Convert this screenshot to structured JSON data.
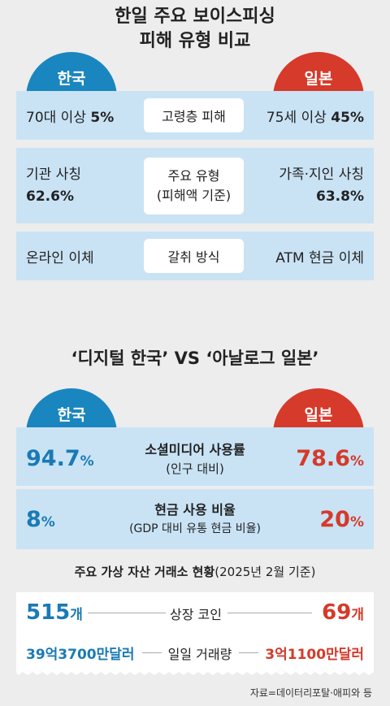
{
  "section1": {
    "title_line1": "한일 주요 보이스피싱",
    "title_line2": "피해 유형 비교",
    "korea_label": "한국",
    "japan_label": "일본",
    "rows": [
      {
        "category": "고령층 피해",
        "korea_text": "70대 이상",
        "korea_value": "5%",
        "japan_text": "75세 이상",
        "japan_value": "45%"
      },
      {
        "category_line1": "주요 유형",
        "category_line2": "(피해액 기준)",
        "korea_text": "기관 사칭",
        "korea_value": "62.6%",
        "japan_text": "가족·지인 사칭",
        "japan_value": "63.8%"
      },
      {
        "category": "갈취 방식",
        "korea_text": "온라인 이체",
        "japan_text": "ATM 현금 이체"
      }
    ]
  },
  "section2": {
    "title": "‘디지털 한국’ VS ‘아날로그 일본’",
    "korea_label": "한국",
    "japan_label": "일본",
    "social": {
      "label": "소셜미디어 사용률",
      "sub": "(인구 대비)",
      "korea_num": "94.7",
      "japan_num": "78.6",
      "unit": "%"
    },
    "cash": {
      "label": "현금 사용 비율",
      "sub": "(GDP 대비 유통 현금 비율)",
      "korea_num": "8",
      "japan_num": "20",
      "unit": "%"
    },
    "exchange": {
      "title_bold": "주요 가상 자산 거래소 현황",
      "title_paren": "(2025년 2월 기준)",
      "listed_label": "상장 코인",
      "korea_listed_num": "515",
      "japan_listed_num": "69",
      "listed_unit": "개",
      "volume_label": "일일 거래량",
      "korea_volume": "39억3700만달러",
      "japan_volume": "3억1100만달러"
    }
  },
  "source": "자료=데이터리포탈·애피와 등",
  "colors": {
    "korea": "#1a86c0",
    "japan": "#d53a2a",
    "panel": "#c9e3f5",
    "background": "#ededed"
  }
}
